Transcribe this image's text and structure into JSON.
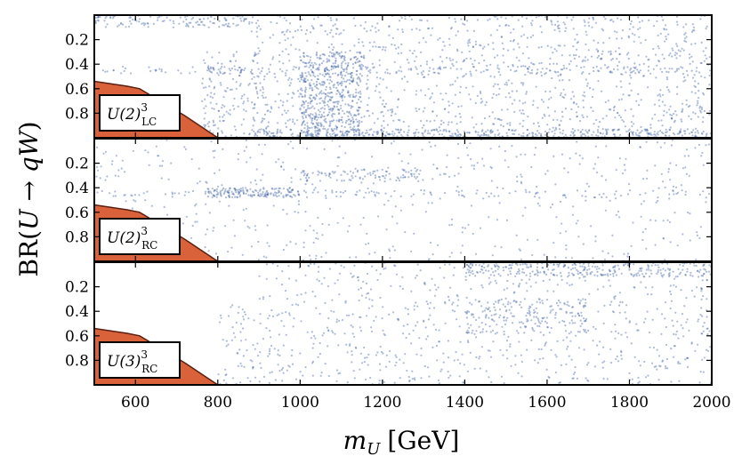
{
  "chart_data": {
    "type": "scatter",
    "xlabel": "m_U [GeV]",
    "xlabel_main": "m",
    "xlabel_sub": "U",
    "xlabel_unit": "[GeV]",
    "ylabel": "BR(U → qW)",
    "ylabel_prefix": "BR(",
    "ylabel_U": "U",
    "ylabel_arrow": " → ",
    "ylabel_qW": "qW",
    "ylabel_suffix": ")",
    "xlim": [
      500,
      2000
    ],
    "ylim": [
      1.0,
      0.0
    ],
    "x_ticks": [
      "600",
      "800",
      "1000",
      "1200",
      "1400",
      "1600",
      "1800",
      "2000"
    ],
    "y_ticks": [
      "0.2",
      "0.4",
      "0.6",
      "0.8"
    ],
    "point_color": "#4a6aa8",
    "exclusion_color": "#d9623b",
    "exclusion_boundary": [
      [
        500,
        0.54
      ],
      [
        540,
        0.56
      ],
      [
        580,
        0.58
      ],
      [
        610,
        0.6
      ],
      [
        640,
        0.66
      ],
      [
        680,
        0.74
      ],
      [
        720,
        0.82
      ],
      [
        760,
        0.91
      ],
      [
        800,
        1.0
      ]
    ],
    "panels": [
      {
        "label_base": "U(2)",
        "label_sup": "3",
        "label_sub": "LC",
        "density": 1.0,
        "regions": [
          {
            "x": [
              880,
              2000
            ],
            "y": [
              0.0,
              1.0
            ],
            "weight": 5.0
          },
          {
            "x": [
              1000,
              1150
            ],
            "y": [
              0.3,
              1.0
            ],
            "weight": 2.0
          },
          {
            "x": [
              760,
              900
            ],
            "y": [
              0.3,
              1.0
            ],
            "weight": 0.6
          },
          {
            "x": [
              500,
              880
            ],
            "y": [
              0.0,
              0.1
            ],
            "weight": 0.5
          },
          {
            "x": [
              520,
              2000
            ],
            "y": [
              0.42,
              0.48
            ],
            "weight": 0.6
          },
          {
            "x": [
              880,
              2000
            ],
            "y": [
              0.93,
              1.0
            ],
            "weight": 1.4
          }
        ]
      },
      {
        "label_base": "U(2)",
        "label_sup": "3",
        "label_sub": "RC",
        "density": 0.35,
        "regions": [
          {
            "x": [
              500,
              2000
            ],
            "y": [
              0.0,
              1.0
            ],
            "weight": 3.0
          },
          {
            "x": [
              770,
              1000
            ],
            "y": [
              0.4,
              0.48
            ],
            "weight": 0.8
          },
          {
            "x": [
              1000,
              1300
            ],
            "y": [
              0.25,
              0.35
            ],
            "weight": 0.5
          },
          {
            "x": [
              520,
              2000
            ],
            "y": [
              0.42,
              0.48
            ],
            "weight": 0.6
          }
        ]
      },
      {
        "label_base": "U(3)",
        "label_sup": "3",
        "label_sub": "RC",
        "density": 0.5,
        "regions": [
          {
            "x": [
              900,
              2000
            ],
            "y": [
              0.0,
              1.0
            ],
            "weight": 4.0
          },
          {
            "x": [
              1400,
              2000
            ],
            "y": [
              0.0,
              0.12
            ],
            "weight": 1.4
          },
          {
            "x": [
              800,
              900
            ],
            "y": [
              0.35,
              1.0
            ],
            "weight": 0.3
          },
          {
            "x": [
              1400,
              1700
            ],
            "y": [
              0.3,
              0.6
            ],
            "weight": 0.8
          }
        ]
      }
    ]
  }
}
